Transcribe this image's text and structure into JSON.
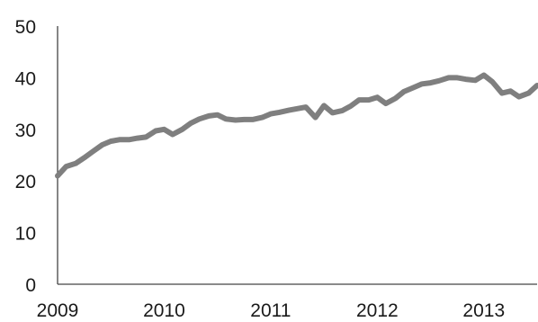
{
  "chart_data": {
    "type": "line",
    "title": "",
    "xlabel": "",
    "ylabel": "",
    "ylim": [
      0,
      50
    ],
    "xlim": [
      2009.0,
      2013.5
    ],
    "y_ticks": [
      "0",
      "10",
      "20",
      "30",
      "40",
      "50"
    ],
    "x_ticks": [
      "2009",
      "2010",
      "2011",
      "2012",
      "2013"
    ],
    "grid": false,
    "legend": "none",
    "colors": {
      "line": "#7f7f7f",
      "axis": "#444444",
      "text": "#1a1a1a"
    },
    "series": [
      {
        "x": [
          2009.0,
          2009.08,
          2009.17,
          2009.25,
          2009.33,
          2009.42,
          2009.5,
          2009.58,
          2009.67,
          2009.75,
          2009.83,
          2009.92,
          2010.0,
          2010.08,
          2010.17,
          2010.25,
          2010.33,
          2010.42,
          2010.5,
          2010.58,
          2010.67,
          2010.75,
          2010.83,
          2010.92,
          2011.0,
          2011.08,
          2011.17,
          2011.25,
          2011.33,
          2011.42,
          2011.5,
          2011.58,
          2011.67,
          2011.75,
          2011.83,
          2011.92,
          2012.0,
          2012.08,
          2012.17,
          2012.25,
          2012.33,
          2012.42,
          2012.5,
          2012.58,
          2012.67,
          2012.75,
          2012.83,
          2012.92,
          2013.0,
          2013.08,
          2013.17,
          2013.25,
          2013.33,
          2013.42,
          2013.5
        ],
        "values": [
          21.0,
          22.8,
          23.4,
          24.5,
          25.7,
          27.0,
          27.7,
          28.0,
          28.0,
          28.3,
          28.5,
          29.7,
          30.0,
          29.0,
          30.0,
          31.2,
          32.0,
          32.6,
          32.8,
          32.0,
          31.8,
          31.9,
          31.9,
          32.3,
          33.0,
          33.3,
          33.7,
          34.0,
          34.3,
          32.3,
          34.6,
          33.2,
          33.6,
          34.5,
          35.7,
          35.7,
          36.2,
          35.0,
          36.0,
          37.3,
          38.0,
          38.8,
          39.0,
          39.4,
          40.0,
          40.0,
          39.7,
          39.5,
          40.5,
          39.2,
          37.0,
          37.4,
          36.3,
          37.0,
          38.5
        ]
      }
    ]
  }
}
